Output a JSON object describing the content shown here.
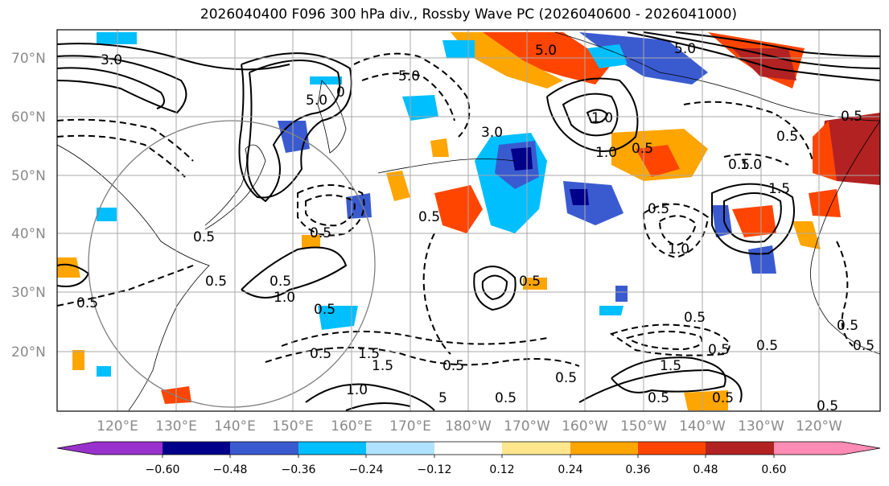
{
  "title": "2026040400 F096 300 hPa div., Rossby Wave PC (2026040600 - 2026041000)",
  "latitude_labels": [
    "70°N",
    "60°N",
    "50°N",
    "40°N",
    "30°N",
    "20°N"
  ],
  "longitude_labels": [
    "120°E",
    "130°E",
    "140°E",
    "150°E",
    "160°E",
    "170°E",
    "180°W",
    "170°W",
    "160°W",
    "150°W",
    "140°W",
    "130°W",
    "120°W"
  ],
  "colorbar": {
    "colors": [
      "#9932cc",
      "#00008b",
      "#3a5bd0",
      "#00bfff",
      "#b0e2ff",
      "#ffffff",
      "#ffe68c",
      "#ffa500",
      "#ff4500",
      "#b22222",
      "#ff8cb4"
    ],
    "tick_labels": [
      "−0.60",
      "−0.48",
      "−0.36",
      "−0.24",
      "−0.12",
      "0.12",
      "0.24",
      "0.36",
      "0.48",
      "0.60"
    ]
  },
  "contour_labels": [
    "5.0",
    "5.0",
    "3.0",
    "5.0",
    "0",
    "5.0",
    "3.0",
    "1.0",
    "1.0",
    "0.5",
    "1.5",
    "0.5",
    "1.0",
    "0.5",
    "0.5",
    "0.5",
    "0.5",
    "0.5",
    "0.5",
    "1.0",
    "1.5",
    "0.5",
    "0.5",
    "0.5",
    "1.5",
    "0.5",
    "0.5",
    "0.5",
    "1.0",
    "0.5",
    "0.5",
    "0.5",
    "0.5",
    "0.5",
    "0.5",
    "0.5",
    "1.0",
    "0.5",
    "1.5",
    "0.5",
    "0.5",
    "0.5",
    "5"
  ]
}
